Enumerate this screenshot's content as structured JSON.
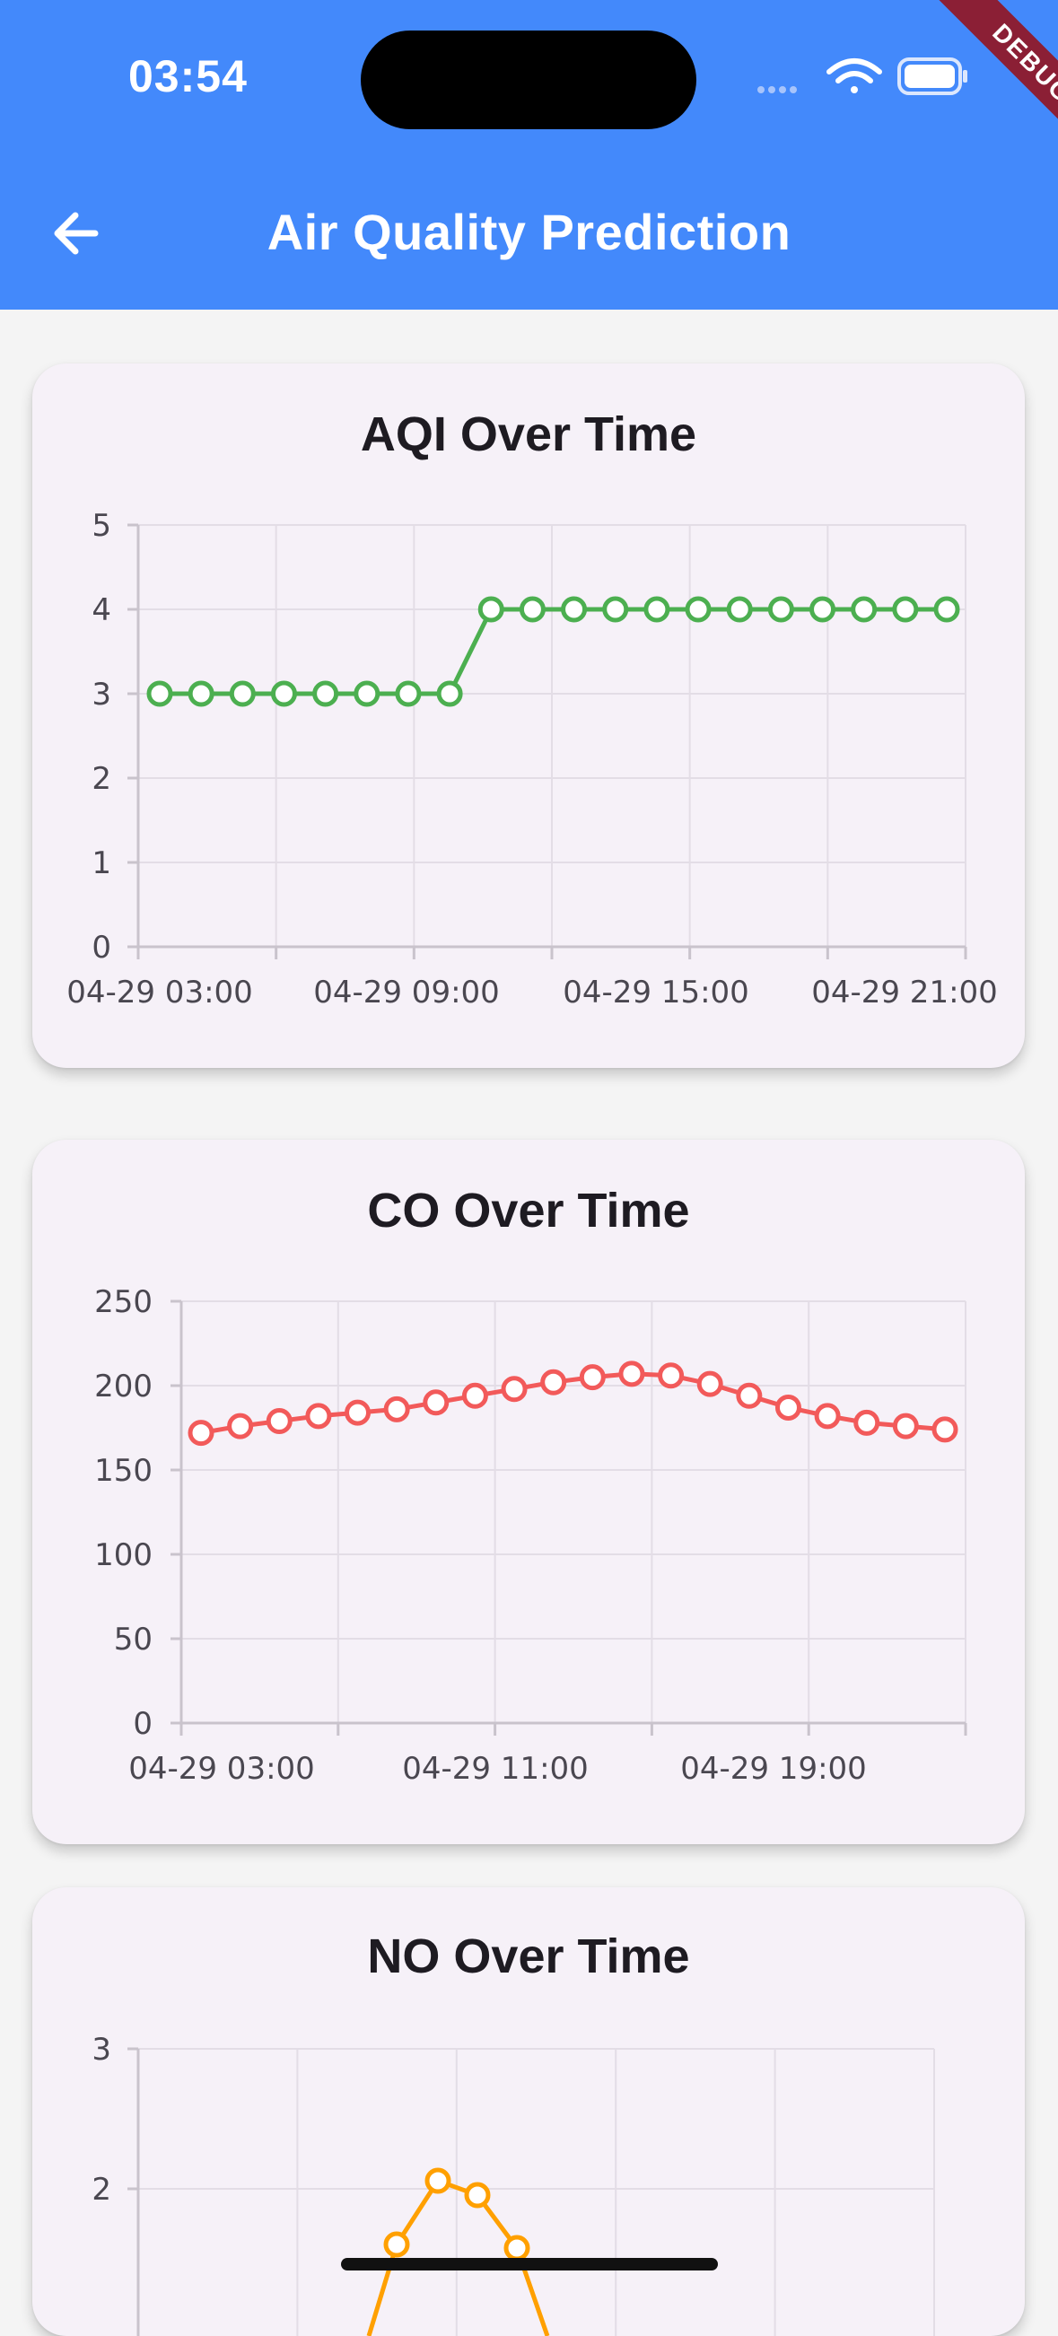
{
  "status_bar": {
    "time": "03:54",
    "debug_banner": "DEBUG",
    "icons": [
      "signal-icon",
      "wifi-icon",
      "battery-icon"
    ]
  },
  "app_bar": {
    "title": "Air Quality Prediction",
    "back_icon": "arrow-left-icon"
  },
  "colors": {
    "app_bar": "#4389fb",
    "card": "#f6f1f8",
    "aqi_line": "#4caf50",
    "co_line": "#f25a5a",
    "no_line": "#ffa000"
  },
  "chart_data": [
    {
      "type": "line",
      "title": "AQI Over Time",
      "color": "#4caf50",
      "x_tick_labels": [
        "04-29 03:00",
        "04-29 09:00",
        "04-29 15:00",
        "04-29 21:00"
      ],
      "y_tick_labels": [
        "0",
        "1",
        "2",
        "3",
        "4",
        "5"
      ],
      "ylim": [
        0,
        5
      ],
      "grid": true,
      "series": [
        {
          "values": [
            3,
            3,
            3,
            3,
            3,
            3,
            3,
            3,
            4,
            4,
            4,
            4,
            4,
            4,
            4,
            4,
            4,
            4,
            4,
            4
          ]
        }
      ]
    },
    {
      "type": "line",
      "title": "CO Over Time",
      "color": "#f25a5a",
      "x_tick_labels": [
        "04-29 03:00",
        "04-29 11:00",
        "04-29 19:00"
      ],
      "y_tick_labels": [
        "0",
        "50",
        "100",
        "150",
        "200",
        "250"
      ],
      "ylim": [
        0,
        250
      ],
      "grid": true,
      "series": [
        {
          "values": [
            172,
            176,
            179,
            182,
            184,
            186,
            190,
            194,
            198,
            202,
            205,
            207,
            206,
            201,
            194,
            187,
            182,
            178,
            176,
            174
          ]
        }
      ]
    },
    {
      "type": "line",
      "title": "NO Over Time",
      "color": "#ffa000",
      "y_tick_labels": [
        "2",
        "3"
      ],
      "grid": true,
      "series": [
        {
          "values": [
            1.6,
            2.05,
            1.95,
            1.55
          ]
        }
      ]
    }
  ]
}
